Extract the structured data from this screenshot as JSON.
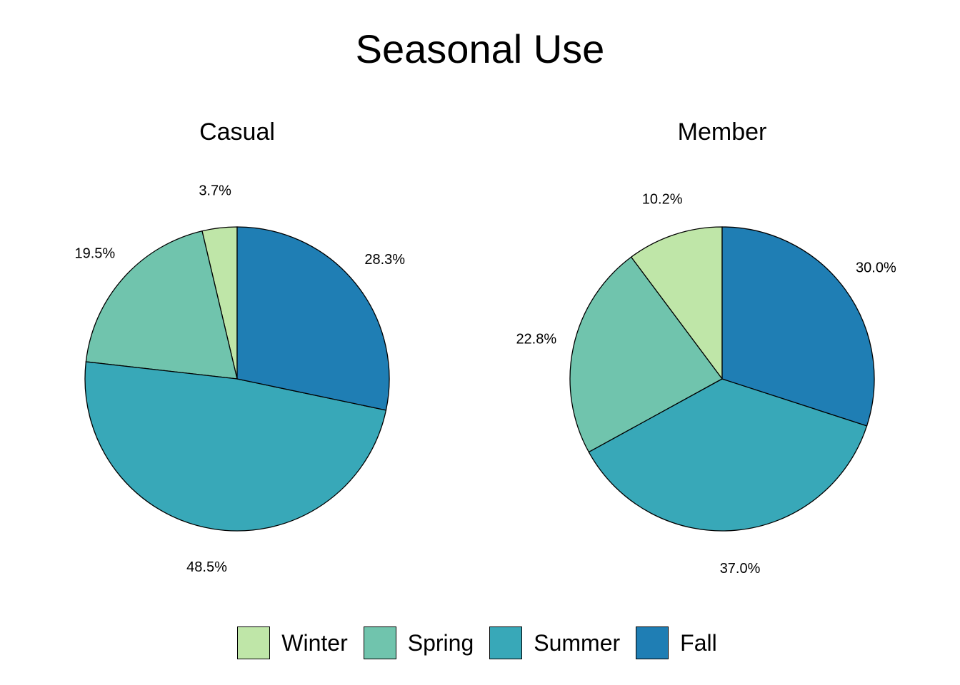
{
  "title": "Seasonal Use",
  "colors": {
    "Winter": "#bfe6a8",
    "Spring": "#70c4ad",
    "Summer": "#38a8b8",
    "Fall": "#1f7eb4"
  },
  "legend": [
    "Winter",
    "Spring",
    "Summer",
    "Fall"
  ],
  "chart_data": [
    {
      "type": "pie",
      "title": "Casual",
      "categories": [
        "Winter",
        "Spring",
        "Summer",
        "Fall"
      ],
      "values": [
        3.7,
        19.5,
        48.5,
        28.3
      ],
      "labels": [
        "3.7%",
        "19.5%",
        "48.5%",
        "28.3%"
      ],
      "start": "12 o'clock",
      "direction": "counterclockwise"
    },
    {
      "type": "pie",
      "title": "Member",
      "categories": [
        "Winter",
        "Spring",
        "Summer",
        "Fall"
      ],
      "values": [
        10.2,
        22.8,
        37.0,
        30.0
      ],
      "labels": [
        "10.2%",
        "22.8%",
        "37.0%",
        "30.0%"
      ],
      "start": "12 o'clock",
      "direction": "counterclockwise"
    }
  ]
}
